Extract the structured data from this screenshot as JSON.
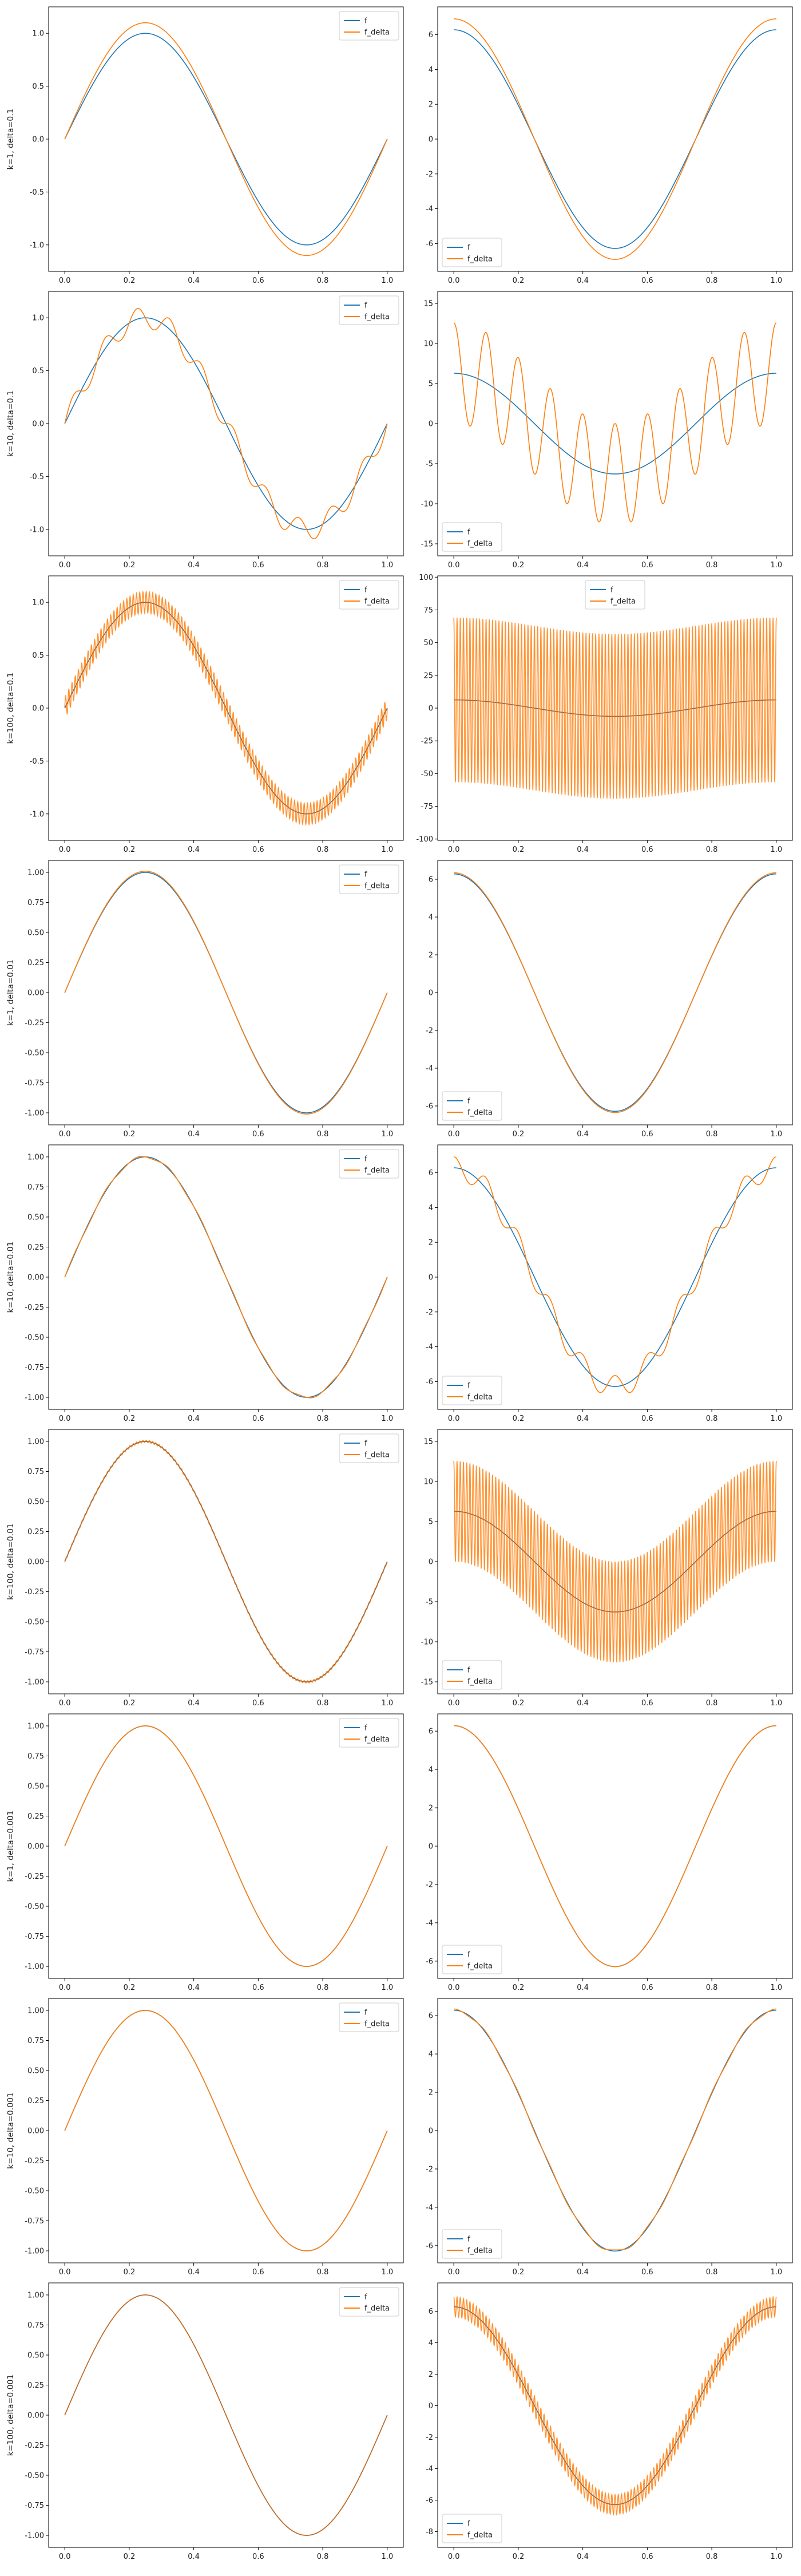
{
  "colors": {
    "f": "#1f77b4",
    "f_delta": "#ff7f0e"
  },
  "chart_data": [
    {
      "type": "line",
      "ylabel": "k=1, delta=0.1",
      "x_ticks": [
        "0.0",
        "0.2",
        "0.4",
        "0.6",
        "0.8",
        "1.0"
      ],
      "y_ticks": [
        "-1.0",
        "-0.5",
        "0.0",
        "0.5",
        "1.0"
      ],
      "ylim": [
        -1.25,
        1.25
      ],
      "xlim": [
        -0.05,
        1.05
      ],
      "legend": "upper-right",
      "series": [
        {
          "name": "f",
          "function": "sin(2*pi*x)"
        },
        {
          "name": "f_delta",
          "function": "sin(2*pi*x) + 0.1*sin(2*pi*x)"
        }
      ]
    },
    {
      "type": "line",
      "ylabel": "",
      "x_ticks": [
        "0.0",
        "0.2",
        "0.4",
        "0.6",
        "0.8",
        "1.0"
      ],
      "y_ticks": [
        "-6",
        "-4",
        "-2",
        "0",
        "2",
        "4",
        "6"
      ],
      "ylim": [
        -7.6,
        7.6
      ],
      "xlim": [
        -0.05,
        1.05
      ],
      "legend": "lower-left",
      "series": [
        {
          "name": "f",
          "function": "2*pi*cos(2*pi*x)"
        },
        {
          "name": "f_delta",
          "function": "2*pi*cos(2*pi*x) + 0.1*2*pi*cos(2*pi*x)"
        }
      ]
    },
    {
      "type": "line",
      "ylabel": "k=10, delta=0.1",
      "x_ticks": [
        "0.0",
        "0.2",
        "0.4",
        "0.6",
        "0.8",
        "1.0"
      ],
      "y_ticks": [
        "-1.0",
        "-0.5",
        "0.0",
        "0.5",
        "1.0"
      ],
      "ylim": [
        -1.25,
        1.25
      ],
      "xlim": [
        -0.05,
        1.05
      ],
      "legend": "upper-right",
      "series": [
        {
          "name": "f",
          "function": "sin(2*pi*x)"
        },
        {
          "name": "f_delta",
          "function": "sin(2*pi*x) + 0.1*sin(2*pi*10*x)"
        }
      ]
    },
    {
      "type": "line",
      "ylabel": "",
      "x_ticks": [
        "0.0",
        "0.2",
        "0.4",
        "0.6",
        "0.8",
        "1.0"
      ],
      "y_ticks": [
        "-15",
        "-10",
        "-5",
        "0",
        "5",
        "10",
        "15"
      ],
      "ylim": [
        -16.5,
        16.5
      ],
      "xlim": [
        -0.05,
        1.05
      ],
      "legend": "lower-left",
      "series": [
        {
          "name": "f",
          "function": "2*pi*cos(2*pi*x)"
        },
        {
          "name": "f_delta",
          "function": "2*pi*cos(2*pi*x) + 0.1*2*pi*10*cos(2*pi*10*x)"
        }
      ]
    },
    {
      "type": "line",
      "ylabel": "k=100, delta=0.1",
      "x_ticks": [
        "0.0",
        "0.2",
        "0.4",
        "0.6",
        "0.8",
        "1.0"
      ],
      "y_ticks": [
        "-1.0",
        "-0.5",
        "0.0",
        "0.5",
        "1.0"
      ],
      "ylim": [
        -1.25,
        1.25
      ],
      "xlim": [
        -0.05,
        1.05
      ],
      "legend": "upper-right",
      "series": [
        {
          "name": "f",
          "function": "sin(2*pi*x)"
        },
        {
          "name": "f_delta",
          "function": "sin(2*pi*x) + 0.1*sin(2*pi*100*x)"
        }
      ]
    },
    {
      "type": "line",
      "ylabel": "",
      "x_ticks": [
        "0.0",
        "0.2",
        "0.4",
        "0.6",
        "0.8",
        "1.0"
      ],
      "y_ticks": [
        "-100",
        "-75",
        "-50",
        "-25",
        "0",
        "25",
        "50",
        "75",
        "100"
      ],
      "ylim": [
        -101,
        101
      ],
      "xlim": [
        -0.05,
        1.05
      ],
      "legend": "upper-center",
      "series": [
        {
          "name": "f",
          "function": "2*pi*cos(2*pi*x)"
        },
        {
          "name": "f_delta",
          "function": "2*pi*cos(2*pi*x) + 0.1*2*pi*100*cos(2*pi*100*x)"
        }
      ]
    },
    {
      "type": "line",
      "ylabel": "k=1, delta=0.01",
      "x_ticks": [
        "0.0",
        "0.2",
        "0.4",
        "0.6",
        "0.8",
        "1.0"
      ],
      "y_ticks": [
        "-1.00",
        "-0.75",
        "-0.50",
        "-0.25",
        "0.00",
        "0.25",
        "0.50",
        "0.75",
        "1.00"
      ],
      "ylim": [
        -1.1,
        1.1
      ],
      "xlim": [
        -0.05,
        1.05
      ],
      "legend": "upper-right",
      "series": [
        {
          "name": "f",
          "function": "sin(2*pi*x)"
        },
        {
          "name": "f_delta",
          "function": "sin(2*pi*x) + 0.01*sin(2*pi*x)"
        }
      ]
    },
    {
      "type": "line",
      "ylabel": "",
      "x_ticks": [
        "0.0",
        "0.2",
        "0.4",
        "0.6",
        "0.8",
        "1.0"
      ],
      "y_ticks": [
        "-6",
        "-4",
        "-2",
        "0",
        "2",
        "4",
        "6"
      ],
      "ylim": [
        -7.0,
        7.0
      ],
      "xlim": [
        -0.05,
        1.05
      ],
      "legend": "lower-left",
      "series": [
        {
          "name": "f",
          "function": "2*pi*cos(2*pi*x)"
        },
        {
          "name": "f_delta",
          "function": "2*pi*cos(2*pi*x) + 0.01*2*pi*cos(2*pi*x)"
        }
      ]
    },
    {
      "type": "line",
      "ylabel": "k=10, delta=0.01",
      "x_ticks": [
        "0.0",
        "0.2",
        "0.4",
        "0.6",
        "0.8",
        "1.0"
      ],
      "y_ticks": [
        "-1.00",
        "-0.75",
        "-0.50",
        "-0.25",
        "0.00",
        "0.25",
        "0.50",
        "0.75",
        "1.00"
      ],
      "ylim": [
        -1.1,
        1.1
      ],
      "xlim": [
        -0.05,
        1.05
      ],
      "legend": "upper-right",
      "series": [
        {
          "name": "f",
          "function": "sin(2*pi*x)"
        },
        {
          "name": "f_delta",
          "function": "sin(2*pi*x) + 0.01*sin(2*pi*10*x)"
        }
      ]
    },
    {
      "type": "line",
      "ylabel": "",
      "x_ticks": [
        "0.0",
        "0.2",
        "0.4",
        "0.6",
        "0.8",
        "1.0"
      ],
      "y_ticks": [
        "-6",
        "-4",
        "-2",
        "0",
        "2",
        "4",
        "6"
      ],
      "ylim": [
        -7.6,
        7.6
      ],
      "xlim": [
        -0.05,
        1.05
      ],
      "legend": "lower-left",
      "series": [
        {
          "name": "f",
          "function": "2*pi*cos(2*pi*x)"
        },
        {
          "name": "f_delta",
          "function": "2*pi*cos(2*pi*x) + 0.01*2*pi*10*cos(2*pi*10*x)"
        }
      ]
    },
    {
      "type": "line",
      "ylabel": "k=100, delta=0.01",
      "x_ticks": [
        "0.0",
        "0.2",
        "0.4",
        "0.6",
        "0.8",
        "1.0"
      ],
      "y_ticks": [
        "-1.00",
        "-0.75",
        "-0.50",
        "-0.25",
        "0.00",
        "0.25",
        "0.50",
        "0.75",
        "1.00"
      ],
      "ylim": [
        -1.1,
        1.1
      ],
      "xlim": [
        -0.05,
        1.05
      ],
      "legend": "upper-right",
      "series": [
        {
          "name": "f",
          "function": "sin(2*pi*x)"
        },
        {
          "name": "f_delta",
          "function": "sin(2*pi*x) + 0.01*sin(2*pi*100*x)"
        }
      ]
    },
    {
      "type": "line",
      "ylabel": "",
      "x_ticks": [
        "0.0",
        "0.2",
        "0.4",
        "0.6",
        "0.8",
        "1.0"
      ],
      "y_ticks": [
        "-15",
        "-10",
        "-5",
        "0",
        "5",
        "10",
        "15"
      ],
      "ylim": [
        -16.5,
        16.5
      ],
      "xlim": [
        -0.05,
        1.05
      ],
      "legend": "lower-left",
      "series": [
        {
          "name": "f",
          "function": "2*pi*cos(2*pi*x)"
        },
        {
          "name": "f_delta",
          "function": "2*pi*cos(2*pi*x) + 0.01*2*pi*100*cos(2*pi*100*x)"
        }
      ]
    },
    {
      "type": "line",
      "ylabel": "k=1, delta=0.001",
      "x_ticks": [
        "0.0",
        "0.2",
        "0.4",
        "0.6",
        "0.8",
        "1.0"
      ],
      "y_ticks": [
        "-1.00",
        "-0.75",
        "-0.50",
        "-0.25",
        "0.00",
        "0.25",
        "0.50",
        "0.75",
        "1.00"
      ],
      "ylim": [
        -1.1,
        1.1
      ],
      "xlim": [
        -0.05,
        1.05
      ],
      "legend": "upper-right",
      "series": [
        {
          "name": "f",
          "function": "sin(2*pi*x)"
        },
        {
          "name": "f_delta",
          "function": "sin(2*pi*x) + 0.001*sin(2*pi*x)"
        }
      ]
    },
    {
      "type": "line",
      "ylabel": "",
      "x_ticks": [
        "0.0",
        "0.2",
        "0.4",
        "0.6",
        "0.8",
        "1.0"
      ],
      "y_ticks": [
        "-6",
        "-4",
        "-2",
        "0",
        "2",
        "4",
        "6"
      ],
      "ylim": [
        -6.9,
        6.9
      ],
      "xlim": [
        -0.05,
        1.05
      ],
      "legend": "lower-left",
      "series": [
        {
          "name": "f",
          "function": "2*pi*cos(2*pi*x)"
        },
        {
          "name": "f_delta",
          "function": "2*pi*cos(2*pi*x) + 0.001*2*pi*cos(2*pi*x)"
        }
      ]
    },
    {
      "type": "line",
      "ylabel": "k=10, delta=0.001",
      "x_ticks": [
        "0.0",
        "0.2",
        "0.4",
        "0.6",
        "0.8",
        "1.0"
      ],
      "y_ticks": [
        "-1.00",
        "-0.75",
        "-0.50",
        "-0.25",
        "0.00",
        "0.25",
        "0.50",
        "0.75",
        "1.00"
      ],
      "ylim": [
        -1.1,
        1.1
      ],
      "xlim": [
        -0.05,
        1.05
      ],
      "legend": "upper-right",
      "series": [
        {
          "name": "f",
          "function": "sin(2*pi*x)"
        },
        {
          "name": "f_delta",
          "function": "sin(2*pi*x) + 0.001*sin(2*pi*10*x)"
        }
      ]
    },
    {
      "type": "line",
      "ylabel": "",
      "x_ticks": [
        "0.0",
        "0.2",
        "0.4",
        "0.6",
        "0.8",
        "1.0"
      ],
      "y_ticks": [
        "-6",
        "-4",
        "-2",
        "0",
        "2",
        "4",
        "6"
      ],
      "ylim": [
        -6.9,
        6.9
      ],
      "xlim": [
        -0.05,
        1.05
      ],
      "legend": "lower-left",
      "series": [
        {
          "name": "f",
          "function": "2*pi*cos(2*pi*x)"
        },
        {
          "name": "f_delta",
          "function": "2*pi*cos(2*pi*x) + 0.001*2*pi*10*cos(2*pi*10*x)"
        }
      ]
    },
    {
      "type": "line",
      "ylabel": "k=100, delta=0.001",
      "x_ticks": [
        "0.0",
        "0.2",
        "0.4",
        "0.6",
        "0.8",
        "1.0"
      ],
      "y_ticks": [
        "-1.00",
        "-0.75",
        "-0.50",
        "-0.25",
        "0.00",
        "0.25",
        "0.50",
        "0.75",
        "1.00"
      ],
      "ylim": [
        -1.1,
        1.1
      ],
      "xlim": [
        -0.05,
        1.05
      ],
      "legend": "upper-right",
      "series": [
        {
          "name": "f",
          "function": "sin(2*pi*x)"
        },
        {
          "name": "f_delta",
          "function": "sin(2*pi*x) + 0.001*sin(2*pi*100*x)"
        }
      ]
    },
    {
      "type": "line",
      "ylabel": "",
      "x_ticks": [
        "0.0",
        "0.2",
        "0.4",
        "0.6",
        "0.8",
        "1.0"
      ],
      "y_ticks": [
        "-8",
        "-6",
        "-4",
        "-2",
        "0",
        "2",
        "4",
        "6"
      ],
      "ylim": [
        -9.0,
        7.8
      ],
      "xlim": [
        -0.05,
        1.05
      ],
      "legend": "lower-left",
      "series": [
        {
          "name": "f",
          "function": "2*pi*cos(2*pi*x)"
        },
        {
          "name": "f_delta",
          "function": "2*pi*cos(2*pi*x) + 0.001*2*pi*100*cos(2*pi*100*x)"
        }
      ]
    }
  ]
}
